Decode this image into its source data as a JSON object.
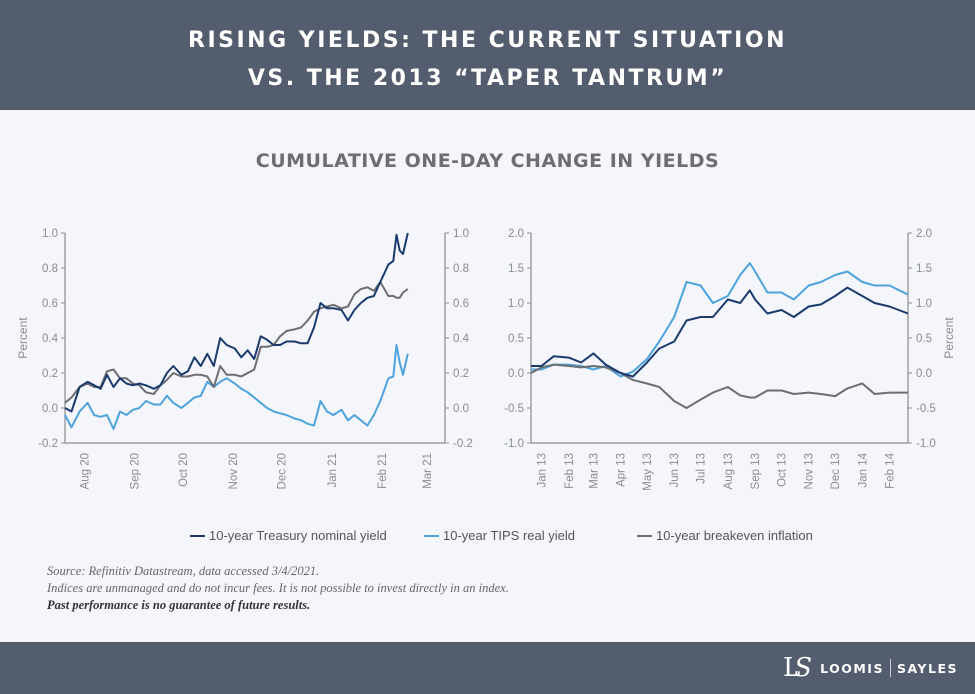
{
  "header": {
    "title_line1": "RISING YIELDS: THE CURRENT SITUATION",
    "title_line2": "VS. THE 2013 “TAPER TANTRUM”"
  },
  "subtitle": "CUMULATIVE ONE-DAY CHANGE IN YIELDS",
  "colors": {
    "nominal": "#1b3a6e",
    "tips": "#4fa3dd",
    "breakeven": "#6d6e71",
    "header_bg": "#545d6e",
    "background": "#f4f6fb"
  },
  "legend": {
    "placement": "bottom",
    "items": [
      {
        "label": "10-year Treasury nominal yield",
        "series": "nominal"
      },
      {
        "label": "10-year TIPS real yield",
        "series": "tips"
      },
      {
        "label": "10-year breakeven inflation",
        "series": "breakeven"
      }
    ]
  },
  "chart_data": [
    {
      "type": "line",
      "ylabel": "Percent",
      "ylabel_side": "left",
      "ylim": [
        -0.2,
        1.0
      ],
      "yticks": [
        "1.0",
        "0.8",
        "0.6",
        "0.4",
        "0.2",
        "0.0",
        "-0.2"
      ],
      "xlim": [
        "2020-07-20",
        "2021-03-12"
      ],
      "xticks": [
        {
          "label": "Aug 20",
          "date": "2020-08-01"
        },
        {
          "label": "Sep 20",
          "date": "2020-09-01"
        },
        {
          "label": "Oct 20",
          "date": "2020-10-01"
        },
        {
          "label": "Nov 20",
          "date": "2020-11-01"
        },
        {
          "label": "Dec 20",
          "date": "2020-12-01"
        },
        {
          "label": "Jan 21",
          "date": "2021-01-01"
        },
        {
          "label": "Feb 21",
          "date": "2021-02-01"
        },
        {
          "label": "Mar 21",
          "date": "2021-03-01"
        }
      ],
      "grid": false,
      "x": [
        "2020-07-20",
        "2020-07-24",
        "2020-07-29",
        "2020-08-03",
        "2020-08-07",
        "2020-08-11",
        "2020-08-15",
        "2020-08-19",
        "2020-08-23",
        "2020-08-27",
        "2020-08-31",
        "2020-09-04",
        "2020-09-08",
        "2020-09-13",
        "2020-09-17",
        "2020-09-21",
        "2020-09-25",
        "2020-09-30",
        "2020-10-04",
        "2020-10-08",
        "2020-10-12",
        "2020-10-16",
        "2020-10-20",
        "2020-10-24",
        "2020-10-28",
        "2020-11-02",
        "2020-11-06",
        "2020-11-10",
        "2020-11-14",
        "2020-11-18",
        "2020-11-22",
        "2020-11-26",
        "2020-11-30",
        "2020-12-04",
        "2020-12-09",
        "2020-12-13",
        "2020-12-17",
        "2020-12-21",
        "2020-12-25",
        "2020-12-29",
        "2021-01-02",
        "2021-01-07",
        "2021-01-11",
        "2021-01-15",
        "2021-01-19",
        "2021-01-23",
        "2021-01-27",
        "2021-01-31",
        "2021-02-05",
        "2021-02-08",
        "2021-02-10",
        "2021-02-12",
        "2021-02-14",
        "2021-02-17"
      ],
      "series": [
        {
          "key": "nominal",
          "name": "10-year Treasury nominal yield",
          "values": [
            0.0,
            -0.02,
            0.12,
            0.15,
            0.13,
            0.11,
            0.19,
            0.12,
            0.17,
            0.14,
            0.13,
            0.14,
            0.13,
            0.11,
            0.13,
            0.2,
            0.24,
            0.19,
            0.21,
            0.29,
            0.24,
            0.31,
            0.24,
            0.4,
            0.36,
            0.34,
            0.29,
            0.33,
            0.28,
            0.41,
            0.39,
            0.36,
            0.36,
            0.38,
            0.38,
            0.37,
            0.37,
            0.46,
            0.6,
            0.57,
            0.57,
            0.56,
            0.5,
            0.56,
            0.6,
            0.63,
            0.64,
            0.72,
            0.82,
            0.84,
            0.99,
            0.9,
            0.88,
            1.0
          ]
        },
        {
          "key": "tips",
          "name": "10-year TIPS real yield",
          "values": [
            -0.04,
            -0.11,
            -0.02,
            0.03,
            -0.04,
            -0.05,
            -0.04,
            -0.12,
            -0.02,
            -0.04,
            -0.01,
            0.0,
            0.04,
            0.02,
            0.02,
            0.07,
            0.03,
            0.0,
            0.03,
            0.06,
            0.07,
            0.15,
            0.12,
            0.15,
            0.17,
            0.14,
            0.11,
            0.09,
            0.06,
            0.03,
            0.0,
            -0.02,
            -0.03,
            -0.04,
            -0.06,
            -0.07,
            -0.09,
            -0.1,
            0.04,
            -0.02,
            -0.04,
            -0.01,
            -0.07,
            -0.04,
            -0.07,
            -0.1,
            -0.04,
            0.04,
            0.17,
            0.18,
            0.36,
            0.26,
            0.19,
            0.31
          ]
        },
        {
          "key": "breakeven",
          "name": "10-year breakeven inflation",
          "values": [
            0.03,
            0.06,
            0.12,
            0.14,
            0.12,
            0.12,
            0.21,
            0.22,
            0.17,
            0.17,
            0.14,
            0.13,
            0.09,
            0.08,
            0.13,
            0.16,
            0.2,
            0.18,
            0.18,
            0.19,
            0.19,
            0.18,
            0.12,
            0.24,
            0.19,
            0.19,
            0.18,
            0.2,
            0.22,
            0.35,
            0.35,
            0.36,
            0.41,
            0.44,
            0.45,
            0.46,
            0.5,
            0.55,
            0.57,
            0.58,
            0.59,
            0.57,
            0.58,
            0.65,
            0.68,
            0.69,
            0.67,
            0.72,
            0.64,
            0.64,
            0.63,
            0.63,
            0.66,
            0.68
          ]
        }
      ]
    },
    {
      "type": "line",
      "ylabel": "Percent",
      "ylabel_side": "right",
      "ylim": [
        -1.0,
        2.0
      ],
      "yticks": [
        "2.0",
        "1.5",
        "1.0",
        "0.5",
        "0.0",
        "-0.5",
        "-1.0"
      ],
      "xlim": [
        "2012-12-20",
        "2014-02-22"
      ],
      "xticks": [
        {
          "label": "Jan 13",
          "date": "2013-01-01"
        },
        {
          "label": "Feb 13",
          "date": "2013-02-01"
        },
        {
          "label": "Mar 13",
          "date": "2013-03-01"
        },
        {
          "label": "Apr 13",
          "date": "2013-04-01"
        },
        {
          "label": "May 13",
          "date": "2013-05-01"
        },
        {
          "label": "Jun 13",
          "date": "2013-06-01"
        },
        {
          "label": "Jul 13",
          "date": "2013-07-01"
        },
        {
          "label": "Aug 13",
          "date": "2013-08-01"
        },
        {
          "label": "Sep 13",
          "date": "2013-09-01"
        },
        {
          "label": "Oct 13",
          "date": "2013-10-01"
        },
        {
          "label": "Nov 13",
          "date": "2013-11-01"
        },
        {
          "label": "Dec 13",
          "date": "2013-12-01"
        },
        {
          "label": "Jan 14",
          "date": "2014-01-01"
        },
        {
          "label": "Feb 14",
          "date": "2014-02-01"
        }
      ],
      "grid": false,
      "x": [
        "2012-12-20",
        "2013-01-01",
        "2013-01-15",
        "2013-02-01",
        "2013-02-15",
        "2013-03-01",
        "2013-03-15",
        "2013-04-01",
        "2013-04-15",
        "2013-05-01",
        "2013-05-15",
        "2013-06-01",
        "2013-06-15",
        "2013-07-01",
        "2013-07-15",
        "2013-08-01",
        "2013-08-15",
        "2013-08-26",
        "2013-09-01",
        "2013-09-15",
        "2013-10-01",
        "2013-10-15",
        "2013-11-01",
        "2013-11-15",
        "2013-12-01",
        "2013-12-15",
        "2014-01-01",
        "2014-01-15",
        "2014-02-01",
        "2014-02-22"
      ],
      "series": [
        {
          "key": "nominal",
          "name": "10-year Treasury nominal yield",
          "values": [
            0.1,
            0.1,
            0.24,
            0.22,
            0.15,
            0.28,
            0.12,
            0.0,
            -0.05,
            0.15,
            0.35,
            0.45,
            0.75,
            0.8,
            0.8,
            1.05,
            1.0,
            1.18,
            1.05,
            0.85,
            0.9,
            0.8,
            0.95,
            0.98,
            1.1,
            1.22,
            1.1,
            1.0,
            0.95,
            0.85
          ]
        },
        {
          "key": "tips",
          "name": "10-year TIPS real yield",
          "values": [
            0.05,
            0.05,
            0.12,
            0.12,
            0.1,
            0.05,
            0.1,
            -0.05,
            0.02,
            0.2,
            0.45,
            0.8,
            1.3,
            1.25,
            1.0,
            1.1,
            1.4,
            1.57,
            1.45,
            1.15,
            1.15,
            1.05,
            1.25,
            1.3,
            1.4,
            1.45,
            1.3,
            1.25,
            1.25,
            1.12
          ]
        },
        {
          "key": "breakeven",
          "name": "10-year breakeven inflation",
          "values": [
            0.0,
            0.08,
            0.12,
            0.1,
            0.08,
            0.1,
            0.08,
            0.0,
            -0.1,
            -0.15,
            -0.2,
            -0.4,
            -0.5,
            -0.38,
            -0.28,
            -0.2,
            -0.32,
            -0.35,
            -0.35,
            -0.25,
            -0.25,
            -0.3,
            -0.28,
            -0.3,
            -0.33,
            -0.22,
            -0.15,
            -0.3,
            -0.28,
            -0.28
          ]
        }
      ]
    }
  ],
  "notes": {
    "source": "Source: Refinitiv Datastream, data accessed 3/4/2021.",
    "disclaimer": "Indices are unmanaged and do not incur fees. It is not possible to invest directly in an index.",
    "performance": "Past performance is no guarantee of future results."
  },
  "footer": {
    "logo_mark": "LS",
    "logo_word1": "LOOMIS",
    "logo_word2": "SAYLES"
  }
}
